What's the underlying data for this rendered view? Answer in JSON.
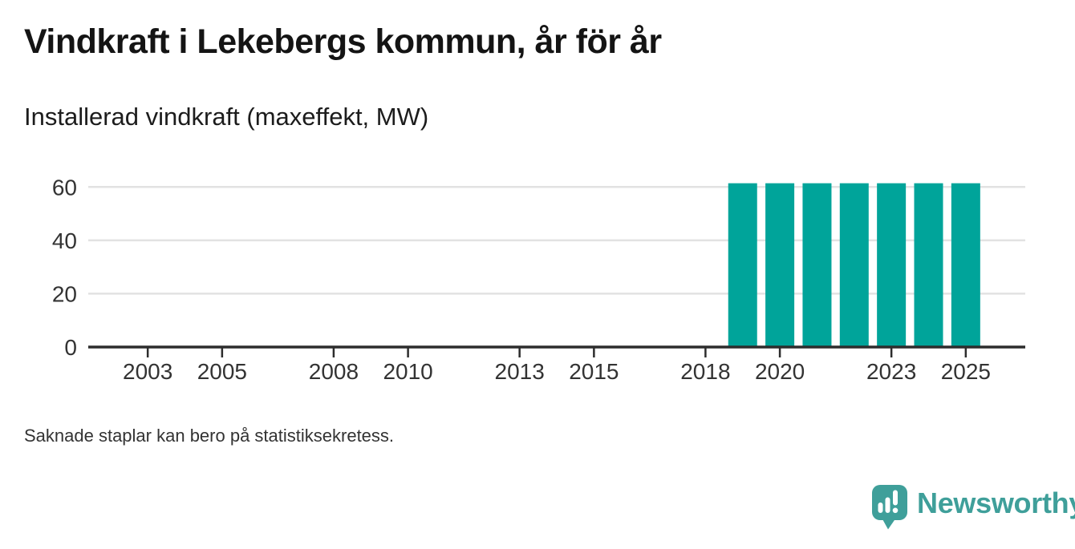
{
  "header": {
    "title": "Vindkraft i Lekebergs kommun, år för år",
    "subtitle": "Installerad vindkraft (maxeffekt, MW)"
  },
  "footnote": "Saknade staplar kan bero på statistiksekretess.",
  "branding": {
    "wordmark": "Newsworthy",
    "logo_icon": "speech-bubble-bar-chart-icon",
    "brand_color": "#3f9f9a"
  },
  "chart_data": {
    "type": "bar",
    "title": "Vindkraft i Lekebergs kommun, år för år",
    "ylabel": "Installerad vindkraft (maxeffekt, MW)",
    "categories": [
      2019,
      2020,
      2021,
      2022,
      2023,
      2024,
      2025
    ],
    "values": [
      61.4,
      61.4,
      61.4,
      61.4,
      61.4,
      61.4,
      61.4
    ],
    "x_ticks": [
      2003,
      2005,
      2008,
      2010,
      2013,
      2015,
      2018,
      2020,
      2023,
      2025
    ],
    "y_ticks": [
      0,
      20,
      40,
      60
    ],
    "xlim": [
      2001.4,
      2026.6
    ],
    "ylim": [
      0,
      67
    ],
    "bar_color": "#00a49a",
    "axis_text_color": "#333333",
    "gridline_color": "#e2e2e2",
    "axis_line_color": "#2d2d2d",
    "grid": "horizontal-only",
    "legend": "none",
    "note": "Saknade staplar kan bero på statistiksekretess. (Bars only for 2019–2025, earlier years empty.)"
  }
}
